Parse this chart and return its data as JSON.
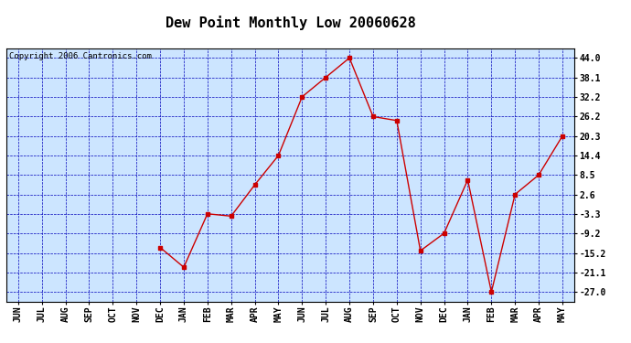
{
  "title": "Dew Point Monthly Low 20060628",
  "copyright": "Copyright 2006 Cantronics.com",
  "x_labels": [
    "JUN",
    "JUL",
    "AUG",
    "SEP",
    "OCT",
    "NOV",
    "DEC",
    "JAN",
    "FEB",
    "MAR",
    "APR",
    "MAY",
    "JUN",
    "JUL",
    "AUG",
    "SEP",
    "OCT",
    "NOV",
    "DEC",
    "JAN",
    "FEB",
    "MAR",
    "APR",
    "MAY"
  ],
  "y_values": [
    null,
    null,
    null,
    null,
    null,
    null,
    -13.5,
    -19.5,
    -3.3,
    -4.0,
    5.5,
    14.4,
    32.2,
    38.1,
    44.0,
    26.2,
    25.0,
    -14.5,
    -9.2,
    7.0,
    -27.0,
    2.6,
    8.5,
    20.3
  ],
  "y_ticks": [
    -27.0,
    -21.1,
    -15.2,
    -9.2,
    -3.3,
    2.6,
    8.5,
    14.4,
    20.3,
    26.2,
    32.2,
    38.1,
    44.0
  ],
  "ylim": [
    -30,
    47
  ],
  "line_color": "#cc0000",
  "marker_color": "#cc0000",
  "bg_color": "#cce5ff",
  "grid_color": "#0000bb",
  "border_color": "#000000",
  "title_fontsize": 11,
  "tick_fontsize": 7,
  "copyright_fontsize": 6.5
}
